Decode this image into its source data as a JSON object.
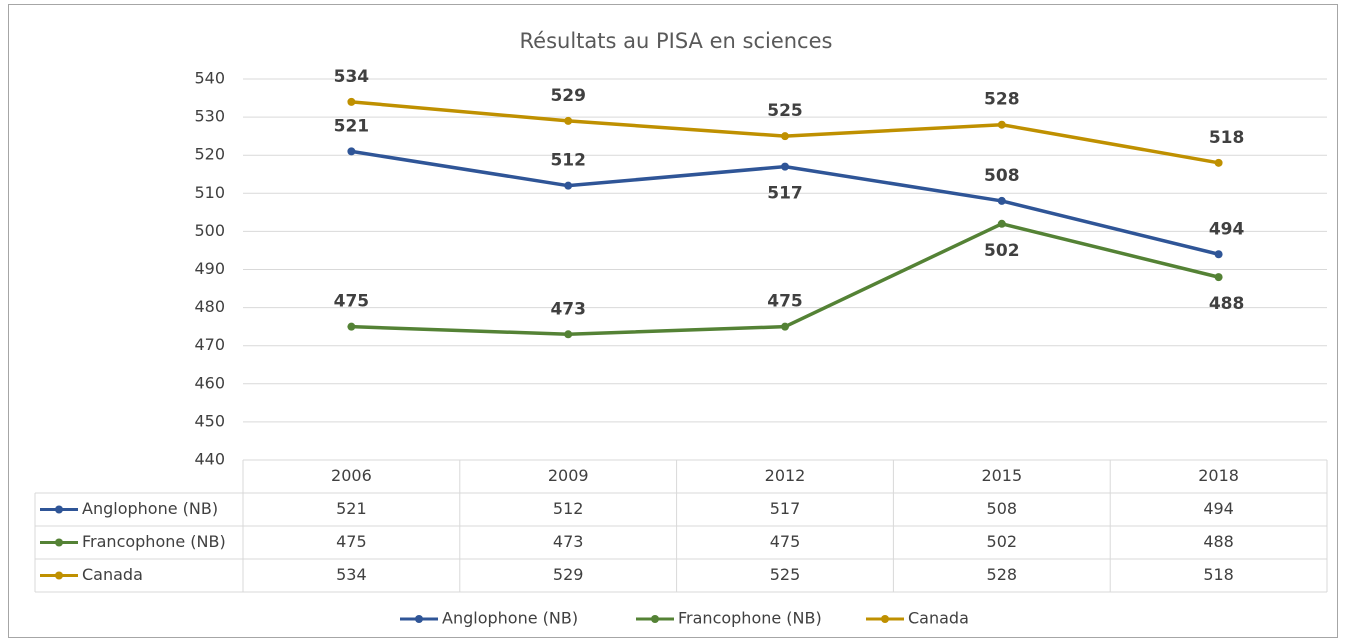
{
  "chart_data": {
    "type": "line",
    "title": "Résultats au PISA en sciences",
    "categories": [
      "2006",
      "2009",
      "2012",
      "2015",
      "2018"
    ],
    "series": [
      {
        "name": "Anglophone (NB)",
        "color": "#2f5597",
        "values": [
          521,
          512,
          517,
          508,
          494
        ]
      },
      {
        "name": "Francophone (NB)",
        "color": "#548235",
        "values": [
          475,
          473,
          475,
          502,
          488
        ]
      },
      {
        "name": "Canada",
        "color": "#bf9000",
        "values": [
          534,
          529,
          525,
          528,
          518
        ]
      }
    ],
    "ylim": [
      440,
      540
    ],
    "yticks": [
      440,
      450,
      460,
      470,
      480,
      490,
      500,
      510,
      520,
      530,
      540
    ],
    "grid": true,
    "legend": "bottom"
  }
}
